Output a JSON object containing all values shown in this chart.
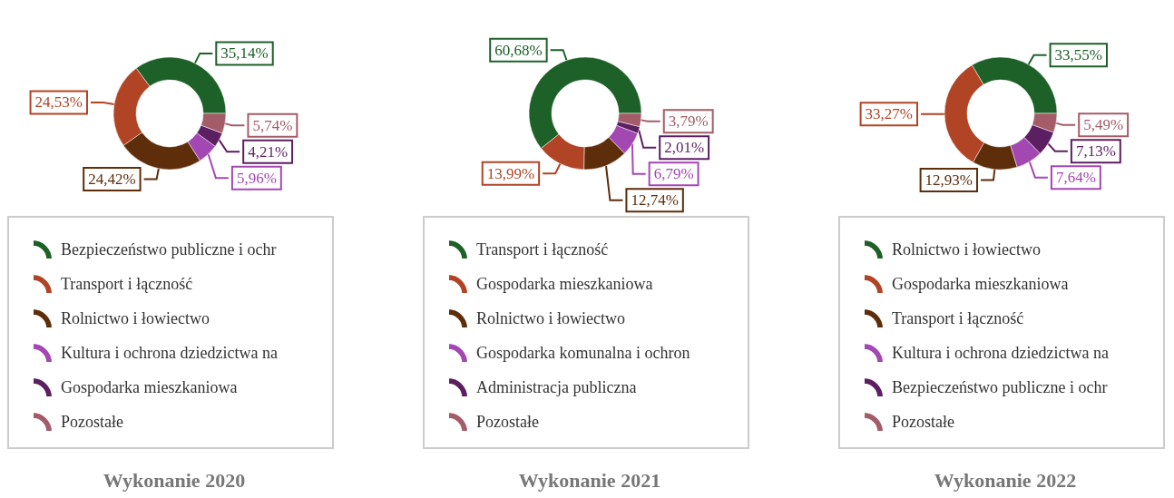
{
  "chart_data": [
    {
      "type": "donut",
      "title": "Wykonanie 2020",
      "legend": "bottom",
      "categories": [
        "Bezpieczeństwo publiczne i ochr",
        "Transport i łączność",
        "Rolnictwo i łowiectwo",
        "Kultura i ochrona dziedzictwa na",
        "Gospodarka mieszkaniowa",
        "Pozostałe"
      ],
      "values": [
        35.14,
        24.53,
        24.42,
        5.96,
        4.21,
        5.74
      ],
      "value_labels": [
        "35,14%",
        "24,53%",
        "24,42%",
        "5,96%",
        "4,21%",
        "5,74%"
      ],
      "colors": [
        "#1e6128",
        "#b04425",
        "#5e2d0a",
        "#a347b3",
        "#5b1f62",
        "#a35c68"
      ]
    },
    {
      "type": "donut",
      "title": "Wykonanie 2021",
      "legend": "bottom",
      "categories": [
        "Transport i łączność",
        "Gospodarka mieszkaniowa",
        "Rolnictwo i łowiectwo",
        "Gospodarka komunalna i ochron",
        "Administracja publiczna",
        "Pozostałe"
      ],
      "values": [
        60.68,
        13.99,
        12.74,
        6.79,
        2.01,
        3.79
      ],
      "value_labels": [
        "60,68%",
        "13,99%",
        "12,74%",
        "6,79%",
        "2,01%",
        "3,79%"
      ],
      "colors": [
        "#1e6128",
        "#b04425",
        "#5e2d0a",
        "#a347b3",
        "#5b1f62",
        "#a35c68"
      ]
    },
    {
      "type": "donut",
      "title": "Wykonanie 2022",
      "legend": "bottom",
      "categories": [
        "Rolnictwo i łowiectwo",
        "Gospodarka mieszkaniowa",
        "Transport i łączność",
        "Kultura i ochrona dziedzictwa na",
        "Bezpieczeństwo publiczne i ochr",
        "Pozostałe"
      ],
      "values": [
        33.55,
        33.27,
        12.93,
        7.64,
        7.13,
        5.49
      ],
      "value_labels": [
        "33,55%",
        "33,27%",
        "12,93%",
        "7,64%",
        "7,13%",
        "5,49%"
      ],
      "colors": [
        "#1e6128",
        "#b04425",
        "#5e2d0a",
        "#a347b3",
        "#5b1f62",
        "#a35c68"
      ]
    }
  ]
}
